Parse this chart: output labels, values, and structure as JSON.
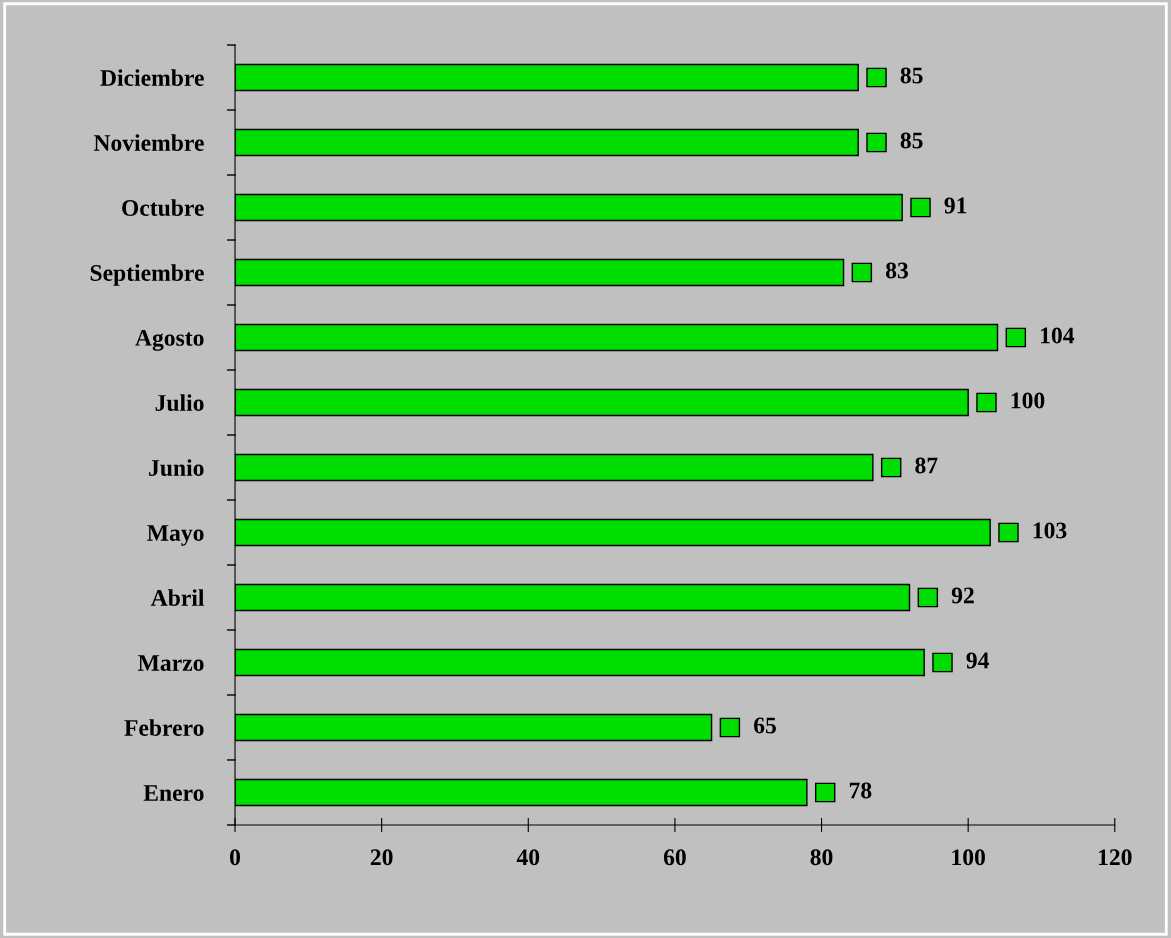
{
  "chart_data": {
    "type": "bar",
    "orientation": "horizontal",
    "categories": [
      "Diciembre",
      "Noviembre",
      "Octubre",
      "Septiembre",
      "Agosto",
      "Julio",
      "Junio",
      "Mayo",
      "Abril",
      "Marzo",
      "Febrero",
      "Enero"
    ],
    "values": [
      85,
      85,
      91,
      83,
      104,
      100,
      87,
      103,
      92,
      94,
      65,
      78
    ],
    "color": "#00dd00",
    "xlim": [
      0,
      120
    ],
    "xticks": [
      0,
      20,
      40,
      60,
      80,
      100,
      120
    ],
    "data_labels": true,
    "grid": false,
    "legend": false
  }
}
